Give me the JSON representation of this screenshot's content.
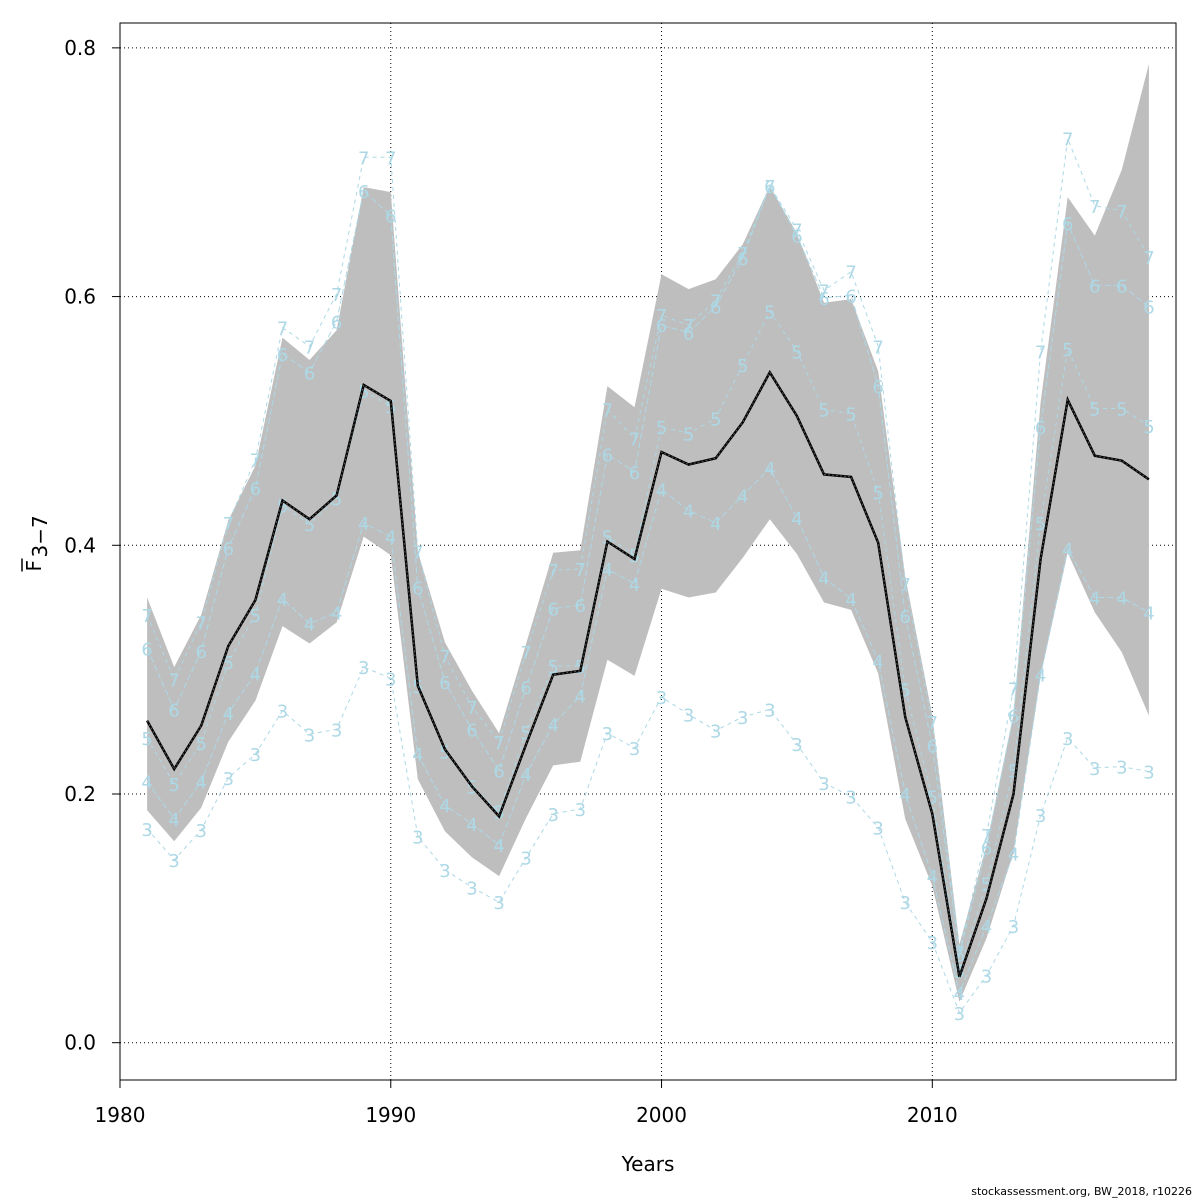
{
  "credit": "stockassessment.org, BW_2018, r10226",
  "colors": {
    "band": "#bebebe",
    "mean_line": "#000000",
    "age_lines": "#add8e6",
    "grid": "#000000"
  },
  "chart_data": {
    "type": "line",
    "title": "",
    "xlabel": "Years",
    "ylabel": {
      "base": "F",
      "sub": "3−7"
    },
    "xlim": [
      1980,
      2019
    ],
    "ylim": [
      -0.03,
      0.82
    ],
    "xticks": [
      1980,
      1990,
      2000,
      2010
    ],
    "yticks": [
      0.0,
      0.2,
      0.4,
      0.6,
      0.8
    ],
    "ytick_labels": [
      "0.0",
      "0.2",
      "0.4",
      "0.6",
      "0.8"
    ],
    "grid": true,
    "years": [
      1981,
      1982,
      1983,
      1984,
      1985,
      1986,
      1987,
      1988,
      1989,
      1990,
      1991,
      1992,
      1993,
      1994,
      1995,
      1996,
      1997,
      1998,
      1999,
      2000,
      2001,
      2002,
      2003,
      2004,
      2005,
      2006,
      2007,
      2008,
      2009,
      2010,
      2011,
      2012,
      2013,
      2014,
      2015,
      2016,
      2017,
      2018
    ],
    "estimate": [
      0.259,
      0.22,
      0.255,
      0.319,
      0.356,
      0.436,
      0.421,
      0.44,
      0.529,
      0.516,
      0.287,
      0.236,
      0.206,
      0.182,
      0.24,
      0.296,
      0.299,
      0.403,
      0.389,
      0.475,
      0.465,
      0.47,
      0.499,
      0.539,
      0.504,
      0.457,
      0.455,
      0.402,
      0.262,
      0.184,
      0.053,
      0.116,
      0.2,
      0.389,
      0.517,
      0.472,
      0.468,
      0.453
    ],
    "lower": [
      0.187,
      0.162,
      0.189,
      0.242,
      0.275,
      0.335,
      0.321,
      0.338,
      0.407,
      0.392,
      0.212,
      0.17,
      0.149,
      0.134,
      0.181,
      0.223,
      0.226,
      0.308,
      0.295,
      0.365,
      0.358,
      0.362,
      0.39,
      0.421,
      0.393,
      0.354,
      0.348,
      0.297,
      0.18,
      0.126,
      0.033,
      0.084,
      0.153,
      0.295,
      0.394,
      0.346,
      0.314,
      0.263
    ],
    "upper": [
      0.358,
      0.302,
      0.344,
      0.42,
      0.464,
      0.567,
      0.549,
      0.573,
      0.688,
      0.684,
      0.395,
      0.322,
      0.283,
      0.249,
      0.321,
      0.394,
      0.396,
      0.528,
      0.511,
      0.618,
      0.606,
      0.614,
      0.642,
      0.689,
      0.651,
      0.595,
      0.598,
      0.54,
      0.375,
      0.263,
      0.079,
      0.159,
      0.264,
      0.515,
      0.68,
      0.649,
      0.702,
      0.787
    ],
    "series": [
      {
        "name": "3",
        "values": [
          0.172,
          0.147,
          0.171,
          0.213,
          0.232,
          0.267,
          0.248,
          0.252,
          0.302,
          0.293,
          0.166,
          0.139,
          0.125,
          0.113,
          0.149,
          0.184,
          0.188,
          0.249,
          0.237,
          0.278,
          0.264,
          0.251,
          0.262,
          0.268,
          0.24,
          0.209,
          0.198,
          0.173,
          0.113,
          0.081,
          0.024,
          0.054,
          0.094,
          0.183,
          0.245,
          0.221,
          0.222,
          0.218
        ]
      },
      {
        "name": "4",
        "values": [
          0.21,
          0.18,
          0.21,
          0.265,
          0.297,
          0.357,
          0.337,
          0.346,
          0.418,
          0.407,
          0.232,
          0.191,
          0.176,
          0.159,
          0.216,
          0.256,
          0.279,
          0.381,
          0.369,
          0.445,
          0.428,
          0.418,
          0.44,
          0.462,
          0.422,
          0.374,
          0.357,
          0.307,
          0.2,
          0.134,
          0.04,
          0.094,
          0.152,
          0.296,
          0.397,
          0.358,
          0.358,
          0.346
        ]
      },
      {
        "name": "5",
        "values": [
          0.245,
          0.208,
          0.241,
          0.306,
          0.344,
          0.432,
          0.417,
          0.438,
          0.524,
          0.512,
          0.287,
          0.234,
          0.206,
          0.186,
          0.25,
          0.303,
          0.303,
          0.407,
          0.392,
          0.495,
          0.49,
          0.502,
          0.545,
          0.588,
          0.556,
          0.509,
          0.506,
          0.443,
          0.284,
          0.198,
          0.058,
          0.128,
          0.219,
          0.418,
          0.558,
          0.51,
          0.51,
          0.496
        ]
      },
      {
        "name": "6",
        "values": [
          0.317,
          0.268,
          0.315,
          0.398,
          0.446,
          0.554,
          0.539,
          0.58,
          0.685,
          0.665,
          0.366,
          0.29,
          0.252,
          0.219,
          0.286,
          0.349,
          0.352,
          0.473,
          0.459,
          0.577,
          0.571,
          0.592,
          0.631,
          0.689,
          0.649,
          0.599,
          0.601,
          0.528,
          0.343,
          0.239,
          0.071,
          0.157,
          0.263,
          0.495,
          0.659,
          0.609,
          0.609,
          0.592
        ]
      },
      {
        "name": "7",
        "values": [
          0.344,
          0.292,
          0.338,
          0.418,
          0.469,
          0.575,
          0.56,
          0.602,
          0.712,
          0.712,
          0.395,
          0.311,
          0.27,
          0.242,
          0.314,
          0.38,
          0.381,
          0.509,
          0.486,
          0.585,
          0.577,
          0.597,
          0.635,
          0.689,
          0.654,
          0.605,
          0.62,
          0.56,
          0.369,
          0.258,
          0.073,
          0.167,
          0.285,
          0.556,
          0.727,
          0.673,
          0.669,
          0.632
        ]
      }
    ]
  }
}
